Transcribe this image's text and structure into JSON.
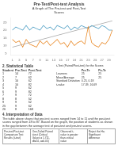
{
  "chart_data": {
    "type": "line",
    "title": "Pre-Test/Post-test Analysis",
    "subtitle": "A Graph of The Pre-test and Post-Test\nScores",
    "x": [
      1,
      2,
      3,
      4,
      5,
      6,
      7,
      8,
      9,
      10,
      11,
      12,
      13,
      14,
      15,
      16,
      17,
      18,
      19,
      20,
      21,
      22,
      23,
      24,
      25,
      26,
      27,
      28,
      29,
      30
    ],
    "xlim": [
      0.5,
      30.5
    ],
    "xticks": [
      1,
      3,
      5,
      7,
      9,
      11,
      13,
      15,
      17,
      19,
      21,
      23,
      25,
      27,
      29
    ],
    "ylim": [
      4,
      28
    ],
    "yticks": [
      5,
      10,
      15,
      20,
      25
    ],
    "grid": false,
    "series": [
      {
        "color": "#aaaaaa",
        "x": [
          1,
          30
        ],
        "values": [
          9,
          26
        ]
      },
      {
        "color": "#4d9ec4",
        "values": [
          20,
          22,
          21,
          20,
          23,
          20,
          22,
          21,
          20,
          23,
          21,
          22,
          20,
          23,
          22,
          21,
          23,
          20,
          22,
          21,
          23,
          22,
          21,
          23,
          22,
          21,
          23,
          22,
          20,
          20
        ]
      },
      {
        "color": "#e8841e",
        "values": [
          14,
          12,
          13,
          9,
          14,
          11,
          10,
          9,
          13,
          11,
          13,
          10,
          12,
          14,
          11,
          12,
          9,
          13,
          10,
          12,
          13,
          11,
          22,
          12,
          10,
          9,
          12,
          11,
          14,
          20
        ]
      }
    ]
  },
  "section2_title": "2. Statistical Table",
  "table_headers": [
    "Student",
    "Pre-Test",
    "Post-Test"
  ],
  "table_data": [
    [
      "1",
      "14",
      "72"
    ],
    [
      "2",
      "7",
      "62"
    ],
    [
      "3",
      "10",
      "62"
    ],
    [
      "4",
      "10",
      "82"
    ],
    [
      "5",
      "9",
      "62"
    ],
    [
      "6",
      "9",
      "82"
    ],
    [
      "7",
      "9",
      "72"
    ],
    [
      "8",
      "8",
      "52"
    ],
    [
      "9",
      "9",
      "52"
    ],
    [
      "25",
      "9",
      "62"
    ],
    [
      "26",
      "8",
      "168"
    ]
  ],
  "section4_title": "4. Interpretation of Data",
  "interp_text": "The table above shows that pre-test scores ranged from 14 to 11 and the post-test scores ranged from 18 to 87. Based on the graph, the position of students as shown in the gap between the average test of post-test and pre-test scores.",
  "stats_title": "t-Test (Paired/Post-test) for the Scores",
  "stats_rows": [
    [
      null,
      "Pre-Te",
      "Po-Te"
    ],
    [
      "Learners",
      "25",
      "25"
    ],
    [
      "Mean/Average",
      "25",
      "25"
    ],
    [
      "Standard Deviation",
      "0.25, 0.18",
      null
    ],
    [
      "t-value",
      "17.39, 16.69",
      null
    ]
  ],
  "bottom_cols": [
    "Pre-test/Post-test\nComparison Test\nResults (t-test)",
    "One-Tailed Paired\nt-test (Critical\nValues = 1.711,\ndf=24, a=0.05)",
    "Observed t-\nvalue is greater\nthan critical\nvalue",
    "Reject the Ho;\nSignificant\ndifference"
  ]
}
